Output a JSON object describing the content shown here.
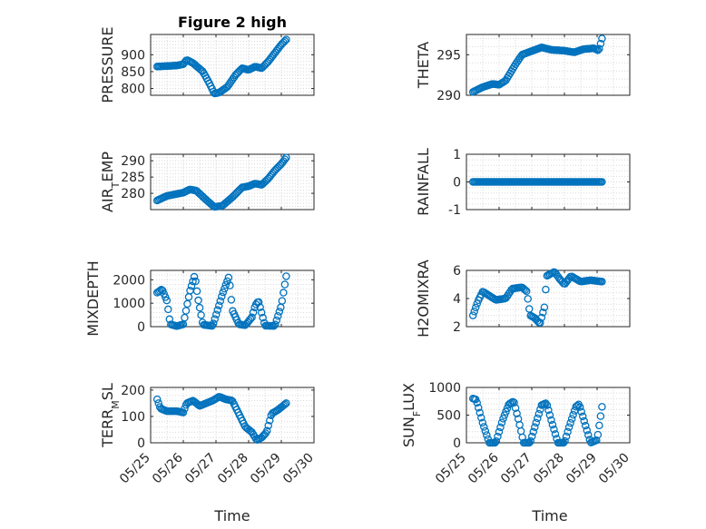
{
  "figure": {
    "title": "Figure 2 high"
  },
  "styling": {
    "marker_color": "#0072BD",
    "axis_color": "#262626",
    "grid_color": "#d9d9d9",
    "background": "#ffffff"
  },
  "x_axis": {
    "label": "Time",
    "tick_labels": [
      "05/25",
      "05/26",
      "05/27",
      "05/28",
      "05/29",
      "05/30"
    ],
    "range_days": [
      0,
      5
    ],
    "data_range_days": [
      0.2,
      4.15
    ],
    "n_points": 95
  },
  "chart_data": [
    {
      "id": "pressure",
      "type": "scatter",
      "marker": "open-circle",
      "ylabel_parts": [
        {
          "t": "PRESSURE"
        }
      ],
      "ylim": [
        780,
        960
      ],
      "yticks": [
        800,
        850,
        900
      ],
      "grid": true,
      "keypoints": [
        [
          0.2,
          865
        ],
        [
          0.8,
          868
        ],
        [
          1.0,
          872
        ],
        [
          1.1,
          885
        ],
        [
          1.3,
          875
        ],
        [
          1.6,
          850
        ],
        [
          1.8,
          815
        ],
        [
          1.95,
          785
        ],
        [
          2.1,
          788
        ],
        [
          2.35,
          805
        ],
        [
          2.6,
          840
        ],
        [
          2.8,
          860
        ],
        [
          3.0,
          855
        ],
        [
          3.2,
          865
        ],
        [
          3.4,
          860
        ],
        [
          3.6,
          880
        ],
        [
          3.8,
          905
        ],
        [
          4.0,
          930
        ],
        [
          4.15,
          945
        ]
      ]
    },
    {
      "id": "theta",
      "type": "scatter",
      "marker": "open-circle",
      "ylabel_parts": [
        {
          "t": "THETA"
        }
      ],
      "ylim": [
        290,
        297.5
      ],
      "yticks": [
        290,
        295
      ],
      "grid": true,
      "keypoints": [
        [
          0.2,
          290.4
        ],
        [
          0.5,
          291.0
        ],
        [
          0.8,
          291.4
        ],
        [
          1.0,
          291.3
        ],
        [
          1.2,
          291.8
        ],
        [
          1.5,
          293.8
        ],
        [
          1.7,
          295.0
        ],
        [
          1.9,
          295.3
        ],
        [
          2.1,
          295.6
        ],
        [
          2.3,
          295.9
        ],
        [
          2.6,
          295.6
        ],
        [
          3.0,
          295.5
        ],
        [
          3.3,
          295.3
        ],
        [
          3.6,
          295.7
        ],
        [
          3.9,
          295.8
        ],
        [
          4.05,
          295.5
        ],
        [
          4.15,
          297.0
        ]
      ]
    },
    {
      "id": "air_temp",
      "type": "scatter",
      "marker": "open-circle",
      "ylabel_parts": [
        {
          "t": "AIR"
        },
        {
          "t": "T",
          "sub": true
        },
        {
          "t": "EMP"
        }
      ],
      "ylim": [
        275,
        292
      ],
      "yticks": [
        280,
        285,
        290
      ],
      "grid": true,
      "keypoints": [
        [
          0.2,
          277.8
        ],
        [
          0.5,
          279.2
        ],
        [
          0.8,
          279.8
        ],
        [
          1.0,
          280.2
        ],
        [
          1.2,
          281.2
        ],
        [
          1.4,
          280.8
        ],
        [
          1.7,
          278.0
        ],
        [
          1.95,
          275.8
        ],
        [
          2.2,
          276.2
        ],
        [
          2.5,
          278.8
        ],
        [
          2.8,
          281.8
        ],
        [
          3.0,
          282.2
        ],
        [
          3.2,
          283.0
        ],
        [
          3.4,
          282.6
        ],
        [
          3.6,
          284.5
        ],
        [
          3.8,
          287.0
        ],
        [
          4.0,
          289.0
        ],
        [
          4.15,
          291.0
        ]
      ]
    },
    {
      "id": "rainfall",
      "type": "scatter",
      "marker": "open-circle",
      "ylabel_parts": [
        {
          "t": "RAINFALL"
        }
      ],
      "ylim": [
        -1,
        1
      ],
      "yticks": [
        -1,
        0,
        1
      ],
      "grid": true,
      "keypoints": [
        [
          0.2,
          0
        ],
        [
          4.15,
          0
        ]
      ]
    },
    {
      "id": "mixdepth",
      "type": "scatter",
      "marker": "open-circle",
      "ylabel_parts": [
        {
          "t": "MIXDEPTH"
        }
      ],
      "ylim": [
        0,
        2400
      ],
      "yticks": [
        0,
        1000,
        2000
      ],
      "grid": true,
      "keypoints": [
        [
          0.2,
          1450
        ],
        [
          0.35,
          1600
        ],
        [
          0.5,
          1100
        ],
        [
          0.6,
          100
        ],
        [
          0.8,
          20
        ],
        [
          1.0,
          100
        ],
        [
          1.2,
          1500
        ],
        [
          1.35,
          2200
        ],
        [
          1.45,
          1200
        ],
        [
          1.6,
          80
        ],
        [
          1.9,
          30
        ],
        [
          2.2,
          1400
        ],
        [
          2.4,
          2150
        ],
        [
          2.5,
          700
        ],
        [
          2.7,
          100
        ],
        [
          2.9,
          60
        ],
        [
          3.1,
          400
        ],
        [
          3.2,
          900
        ],
        [
          3.3,
          1100
        ],
        [
          3.5,
          40
        ],
        [
          3.8,
          30
        ],
        [
          4.0,
          900
        ],
        [
          4.15,
          2150
        ]
      ]
    },
    {
      "id": "h2omixra",
      "type": "scatter",
      "marker": "open-circle",
      "ylabel_parts": [
        {
          "t": "H2OMIXRA"
        }
      ],
      "ylim": [
        2,
        6
      ],
      "yticks": [
        2,
        4,
        6
      ],
      "grid": true,
      "keypoints": [
        [
          0.2,
          2.8
        ],
        [
          0.35,
          3.8
        ],
        [
          0.5,
          4.5
        ],
        [
          0.7,
          4.2
        ],
        [
          0.9,
          3.9
        ],
        [
          1.2,
          4.0
        ],
        [
          1.4,
          4.7
        ],
        [
          1.7,
          4.8
        ],
        [
          1.85,
          4.5
        ],
        [
          1.95,
          2.8
        ],
        [
          2.1,
          2.6
        ],
        [
          2.25,
          2.2
        ],
        [
          2.4,
          3.5
        ],
        [
          2.45,
          5.6
        ],
        [
          2.7,
          5.9
        ],
        [
          2.85,
          5.4
        ],
        [
          3.0,
          5.0
        ],
        [
          3.2,
          5.6
        ],
        [
          3.5,
          5.2
        ],
        [
          3.8,
          5.3
        ],
        [
          4.15,
          5.2
        ]
      ]
    },
    {
      "id": "terr_msl",
      "type": "scatter",
      "marker": "open-circle",
      "ylabel_parts": [
        {
          "t": "TERR"
        },
        {
          "t": "M",
          "sub": true
        },
        {
          "t": "SL"
        }
      ],
      "ylim": [
        0,
        210
      ],
      "yticks": [
        0,
        100,
        200
      ],
      "grid": true,
      "keypoints": [
        [
          0.2,
          165
        ],
        [
          0.3,
          130
        ],
        [
          0.5,
          120
        ],
        [
          0.8,
          120
        ],
        [
          1.0,
          115
        ],
        [
          1.1,
          150
        ],
        [
          1.3,
          160
        ],
        [
          1.5,
          140
        ],
        [
          1.7,
          150
        ],
        [
          1.9,
          160
        ],
        [
          2.1,
          175
        ],
        [
          2.3,
          165
        ],
        [
          2.5,
          160
        ],
        [
          2.7,
          110
        ],
        [
          2.9,
          60
        ],
        [
          3.1,
          40
        ],
        [
          3.25,
          10
        ],
        [
          3.4,
          20
        ],
        [
          3.55,
          40
        ],
        [
          3.7,
          110
        ],
        [
          3.9,
          125
        ],
        [
          4.15,
          150
        ]
      ]
    },
    {
      "id": "sun_flux",
      "type": "scatter",
      "marker": "open-circle",
      "ylabel_parts": [
        {
          "t": "SUN"
        },
        {
          "t": "F",
          "sub": true
        },
        {
          "t": "LUX"
        }
      ],
      "ylim": [
        0,
        1000
      ],
      "yticks": [
        0,
        500,
        1000
      ],
      "grid": true,
      "keypoints": [
        [
          0.2,
          800
        ],
        [
          0.3,
          780
        ],
        [
          0.5,
          350
        ],
        [
          0.7,
          0
        ],
        [
          0.9,
          0
        ],
        [
          1.1,
          400
        ],
        [
          1.3,
          700
        ],
        [
          1.45,
          750
        ],
        [
          1.6,
          400
        ],
        [
          1.75,
          0
        ],
        [
          1.95,
          0
        ],
        [
          2.1,
          300
        ],
        [
          2.3,
          680
        ],
        [
          2.45,
          720
        ],
        [
          2.6,
          400
        ],
        [
          2.8,
          0
        ],
        [
          3.0,
          0
        ],
        [
          3.15,
          300
        ],
        [
          3.35,
          650
        ],
        [
          3.45,
          700
        ],
        [
          3.6,
          400
        ],
        [
          3.8,
          0
        ],
        [
          4.0,
          50
        ],
        [
          4.15,
          650
        ]
      ]
    }
  ]
}
